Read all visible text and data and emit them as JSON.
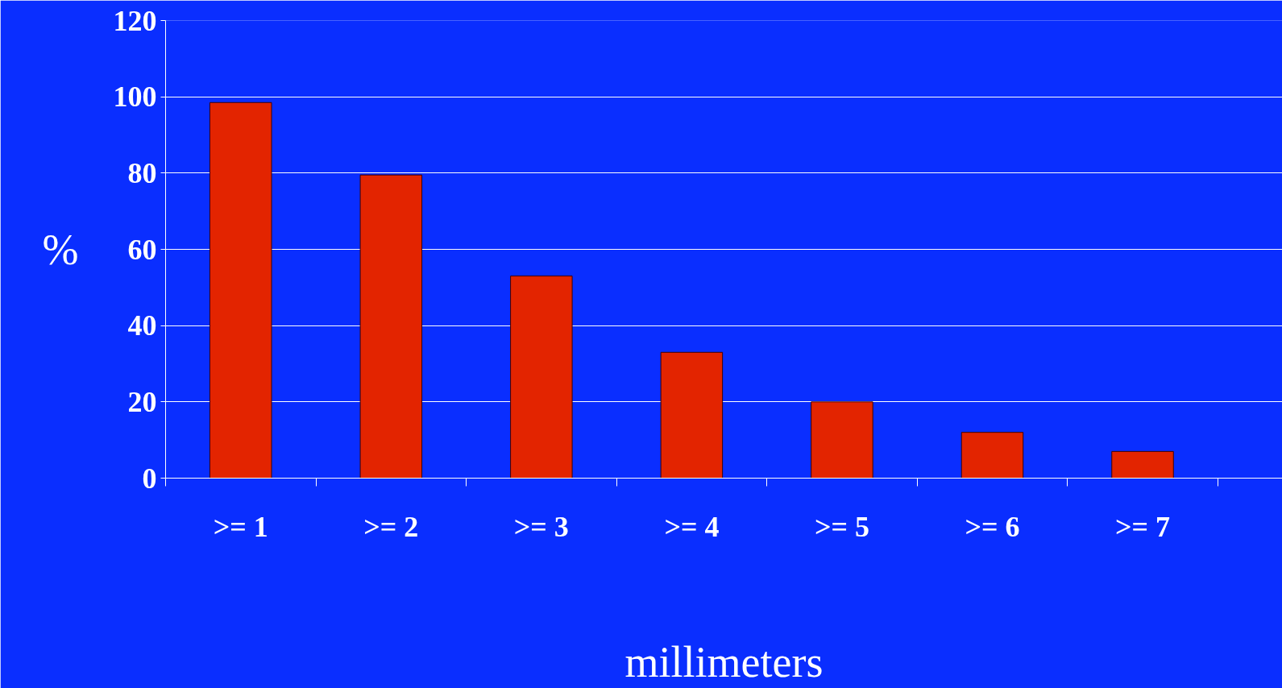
{
  "chart_data": {
    "type": "bar",
    "xlabel": "millimeters",
    "ylabel": "%",
    "categories": [
      ">= 1",
      ">= 2",
      ">= 3",
      ">= 4",
      ">= 5",
      ">= 6",
      ">= 7"
    ],
    "values": [
      98.5,
      79.5,
      53,
      33,
      20,
      12,
      7
    ],
    "color": "#e32400",
    "ylim": [
      0,
      120
    ],
    "yticks": [
      0,
      20,
      40,
      60,
      80,
      100,
      120
    ],
    "grid": "y"
  }
}
